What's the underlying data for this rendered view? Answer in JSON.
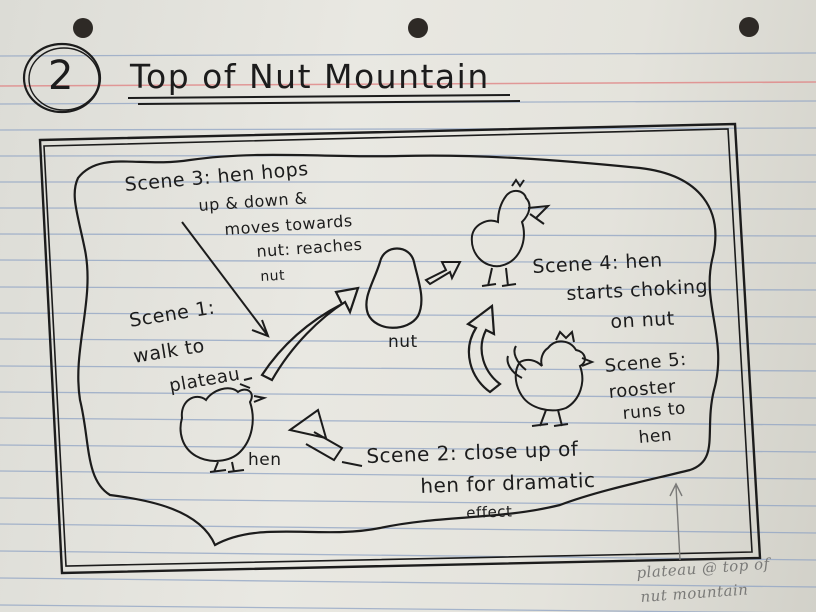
{
  "sheet": {
    "page_number": "2",
    "title": "Top of Nut Mountain"
  },
  "scenes": {
    "scene1": {
      "line1": "Scene 1:",
      "line2": "walk to",
      "line3": "plateau"
    },
    "scene2": {
      "line1": "Scene 2: close up of",
      "line2": "hen for dramatic",
      "line3": "effect"
    },
    "scene3": {
      "line1": "Scene 3: hen hops",
      "line2": "up & down &",
      "line3": "moves towards",
      "line4": "nut: reaches",
      "line5": "nut"
    },
    "scene4": {
      "line1": "Scene 4: hen",
      "line2": "starts choking",
      "line3": "on nut"
    },
    "scene5": {
      "line1": "Scene 5:",
      "line2": "rooster",
      "line3": "runs to",
      "line4": "hen"
    }
  },
  "labels": {
    "hen": "hen",
    "nut": "nut",
    "plateau_note_line1": "plateau @ top of",
    "plateau_note_line2": "nut mountain"
  },
  "colors": {
    "paper": "#e6e5df",
    "ruled_line": "#8fa3c4",
    "margin_line": "#e08a8a",
    "ink": "#1c1c1c",
    "pencil": "#7a7a78"
  }
}
